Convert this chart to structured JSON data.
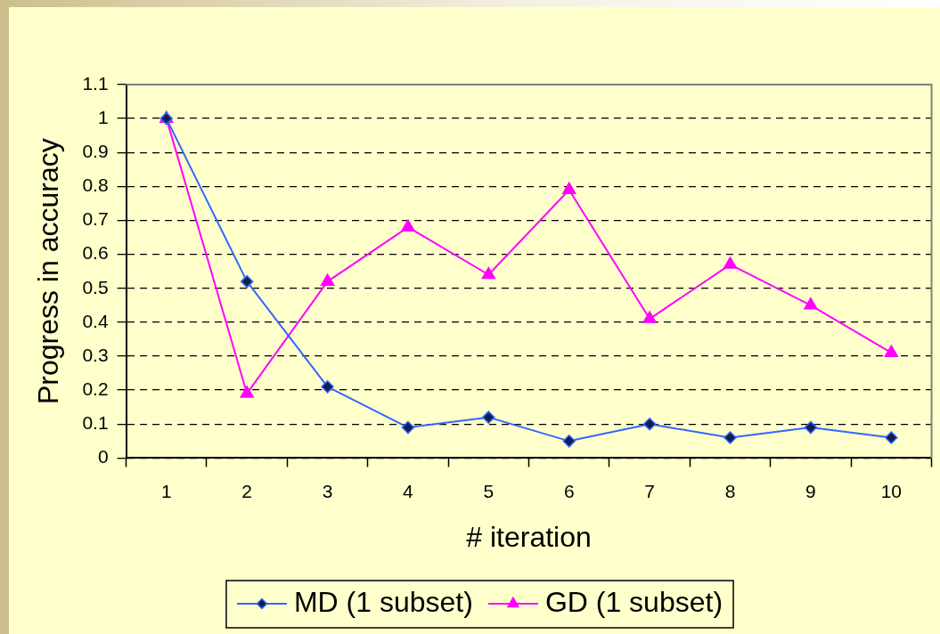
{
  "chart_data": {
    "type": "line",
    "xlabel": "# iteration",
    "ylabel": "Progress in accuracy",
    "categories": [
      "1",
      "2",
      "3",
      "4",
      "5",
      "6",
      "7",
      "8",
      "9",
      "10"
    ],
    "series": [
      {
        "name": "MD (1 subset)",
        "color": "#3366ff",
        "marker": "diamond",
        "values": [
          1,
          0.52,
          0.21,
          0.09,
          0.12,
          0.05,
          0.1,
          0.06,
          0.09,
          0.06
        ]
      },
      {
        "name": "GD (1 subset)",
        "color": "#ff00ff",
        "marker": "triangle",
        "values": [
          1,
          0.19,
          0.52,
          0.68,
          0.54,
          0.79,
          0.41,
          0.57,
          0.45,
          0.31
        ]
      }
    ],
    "ylim": [
      0,
      1.1
    ],
    "yticks": [
      0,
      0.1,
      0.2,
      0.3,
      0.4,
      0.5,
      0.6,
      0.7,
      0.8,
      0.9,
      1,
      1.1
    ],
    "grid": "y",
    "legend": "bottom",
    "line_style": "solid"
  }
}
